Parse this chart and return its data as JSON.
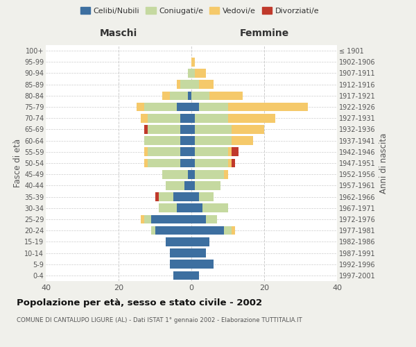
{
  "age_groups": [
    "0-4",
    "5-9",
    "10-14",
    "15-19",
    "20-24",
    "25-29",
    "30-34",
    "35-39",
    "40-44",
    "45-49",
    "50-54",
    "55-59",
    "60-64",
    "65-69",
    "70-74",
    "75-79",
    "80-84",
    "85-89",
    "90-94",
    "95-99",
    "100+"
  ],
  "birth_years": [
    "1997-2001",
    "1992-1996",
    "1987-1991",
    "1982-1986",
    "1977-1981",
    "1972-1976",
    "1967-1971",
    "1962-1966",
    "1957-1961",
    "1952-1956",
    "1947-1951",
    "1942-1946",
    "1937-1941",
    "1932-1936",
    "1927-1931",
    "1922-1926",
    "1917-1921",
    "1912-1916",
    "1907-1911",
    "1902-1906",
    "≤ 1901"
  ],
  "male": {
    "celibi": [
      5,
      6,
      6,
      7,
      10,
      11,
      4,
      5,
      2,
      1,
      3,
      3,
      3,
      3,
      3,
      4,
      1,
      0,
      0,
      0,
      0
    ],
    "coniugati": [
      0,
      0,
      0,
      0,
      1,
      2,
      5,
      4,
      5,
      7,
      9,
      9,
      10,
      9,
      9,
      9,
      5,
      3,
      1,
      0,
      0
    ],
    "vedovi": [
      0,
      0,
      0,
      0,
      0,
      1,
      0,
      0,
      0,
      0,
      1,
      1,
      0,
      0,
      2,
      2,
      2,
      1,
      0,
      0,
      0
    ],
    "divorziati": [
      0,
      0,
      0,
      0,
      0,
      0,
      0,
      1,
      0,
      0,
      0,
      0,
      0,
      1,
      0,
      0,
      0,
      0,
      0,
      0,
      0
    ]
  },
  "female": {
    "nubili": [
      2,
      6,
      4,
      5,
      9,
      4,
      3,
      2,
      1,
      1,
      1,
      1,
      1,
      1,
      1,
      2,
      0,
      0,
      0,
      0,
      0
    ],
    "coniugate": [
      0,
      0,
      0,
      0,
      2,
      3,
      7,
      4,
      7,
      8,
      9,
      9,
      10,
      10,
      9,
      8,
      5,
      2,
      1,
      0,
      0
    ],
    "vedove": [
      0,
      0,
      0,
      0,
      1,
      0,
      0,
      0,
      0,
      1,
      1,
      1,
      6,
      9,
      13,
      22,
      9,
      4,
      3,
      1,
      0
    ],
    "divorziate": [
      0,
      0,
      0,
      0,
      0,
      0,
      0,
      0,
      0,
      0,
      1,
      2,
      0,
      0,
      0,
      0,
      0,
      0,
      0,
      0,
      0
    ]
  },
  "colors": {
    "celibi_nubili": "#3d6fa0",
    "coniugati": "#c5d9a0",
    "vedovi": "#f5c96a",
    "divorziati": "#c0392b"
  },
  "xlim": 40,
  "title": "Popolazione per età, sesso e stato civile - 2002",
  "subtitle": "COMUNE DI CANTALUPO LIGURE (AL) - Dati ISTAT 1° gennaio 2002 - Elaborazione TUTTITALIA.IT",
  "ylabel_left": "Fasce di età",
  "ylabel_right": "Anni di nascita",
  "xlabel_left": "Maschi",
  "xlabel_right": "Femmine",
  "bg_color": "#f0f0eb",
  "plot_bg": "#ffffff"
}
